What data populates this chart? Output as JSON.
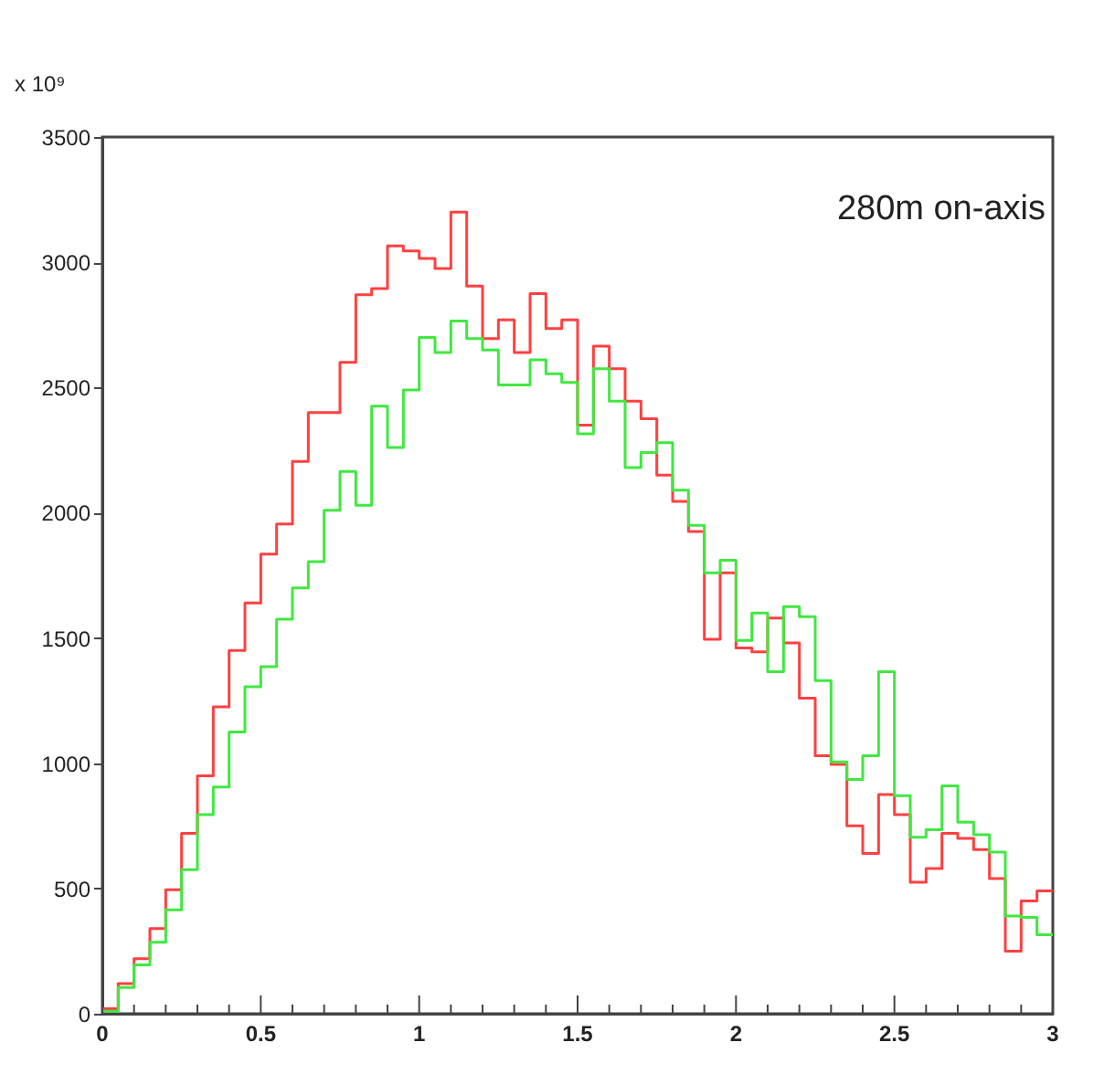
{
  "chart_data": {
    "type": "histogram",
    "bins": [
      0,
      0.05,
      0.1,
      0.15,
      0.2,
      0.25,
      0.3,
      0.35,
      0.4,
      0.45,
      0.5,
      0.55,
      0.6,
      0.65,
      0.7,
      0.75,
      0.8,
      0.85,
      0.9,
      0.95,
      1,
      1.05,
      1.1,
      1.15,
      1.2,
      1.25,
      1.3,
      1.35,
      1.4,
      1.45,
      1.5,
      1.55,
      1.6,
      1.65,
      1.7,
      1.75,
      1.8,
      1.85,
      1.9,
      1.95,
      2,
      2.05,
      2.1,
      2.15,
      2.2,
      2.25,
      2.3,
      2.35,
      2.4,
      2.45,
      2.5,
      2.55,
      2.6,
      2.65,
      2.7,
      2.75,
      2.8,
      2.85,
      2.9,
      2.95,
      3
    ],
    "series": [
      {
        "color": "#ff4040",
        "values": [
          20,
          120,
          220,
          340,
          495,
          720,
          950,
          1225,
          1450,
          1640,
          1835,
          1955,
          2205,
          2400,
          2400,
          2600,
          2870,
          2895,
          3065,
          3045,
          3015,
          2975,
          3200,
          2905,
          2695,
          2770,
          2640,
          2875,
          2735,
          2770,
          2350,
          2665,
          2575,
          2445,
          2375,
          2150,
          2045,
          1925,
          1495,
          1760,
          1460,
          1445,
          1580,
          1480,
          1260,
          1030,
          995,
          750,
          640,
          875,
          795,
          525,
          580,
          720,
          700,
          655,
          540,
          250,
          450,
          490
        ]
      },
      {
        "color": "#40e840",
        "values": [
          10,
          105,
          195,
          285,
          415,
          575,
          795,
          905,
          1125,
          1305,
          1385,
          1575,
          1700,
          1805,
          2010,
          2165,
          2030,
          2425,
          2260,
          2490,
          2700,
          2640,
          2765,
          2695,
          2650,
          2510,
          2510,
          2610,
          2555,
          2520,
          2315,
          2575,
          2445,
          2180,
          2240,
          2280,
          2090,
          1950,
          1760,
          1810,
          1490,
          1600,
          1365,
          1625,
          1585,
          1330,
          1005,
          935,
          1030,
          1365,
          870,
          705,
          735,
          910,
          765,
          715,
          645,
          390,
          385,
          315
        ]
      }
    ],
    "xlim": [
      0,
      3
    ],
    "xticks": [
      0,
      {
        "value": 0.1,
        "label": null
      },
      {
        "value": 0.2,
        "label": null
      },
      {
        "value": 0.3,
        "label": null
      },
      {
        "value": 0.4,
        "label": null
      },
      0.5,
      {
        "value": 0.6,
        "label": null
      },
      {
        "value": 0.7,
        "label": null
      },
      {
        "value": 0.8,
        "label": null
      },
      {
        "value": 0.9,
        "label": null
      },
      1,
      {
        "value": 1.1,
        "label": null
      },
      {
        "value": 1.2,
        "label": null
      },
      {
        "value": 1.3,
        "label": null
      },
      {
        "value": 1.4,
        "label": null
      },
      1.5,
      {
        "value": 1.6,
        "label": null
      },
      {
        "value": 1.7,
        "label": null
      },
      {
        "value": 1.8,
        "label": null
      },
      {
        "value": 1.9,
        "label": null
      },
      2,
      {
        "value": 2.1,
        "label": null
      },
      {
        "value": 2.2,
        "label": null
      },
      {
        "value": 2.3,
        "label": null
      },
      {
        "value": 2.4,
        "label": null
      },
      2.5,
      {
        "value": 2.6,
        "label": null
      },
      {
        "value": 2.7,
        "label": null
      },
      {
        "value": 2.8,
        "label": null
      },
      {
        "value": 2.9,
        "label": null
      },
      3
    ],
    "ylim": [
      0,
      3500
    ],
    "yticks": [
      0,
      500,
      1000,
      1500,
      2000,
      2500,
      3000,
      3500
    ],
    "annotations": [
      "x 10⁹",
      "280m on-axis"
    ],
    "grid": false
  }
}
